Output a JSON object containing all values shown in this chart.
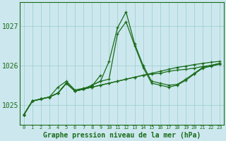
{
  "title": "Graphe pression niveau de la mer (hPa)",
  "background_color": "#cce8ee",
  "grid_color": "#99cccc",
  "line_color": "#1a6b1a",
  "x_labels": [
    "0",
    "1",
    "2",
    "3",
    "4",
    "5",
    "6",
    "7",
    "8",
    "9",
    "10",
    "11",
    "12",
    "13",
    "14",
    "15",
    "16",
    "17",
    "18",
    "19",
    "20",
    "21",
    "22",
    "23"
  ],
  "ylim": [
    1024.5,
    1027.6
  ],
  "yticks": [
    1025,
    1026,
    1027
  ],
  "series": {
    "line1": [
      1024.75,
      1025.1,
      1025.15,
      1025.2,
      1025.3,
      1025.55,
      1025.35,
      1025.4,
      1025.5,
      1025.6,
      1026.1,
      1026.95,
      1027.35,
      1026.55,
      1026.0,
      1025.6,
      1025.55,
      1025.5,
      1025.52,
      1025.65,
      1025.8,
      1025.95,
      1026.0,
      1026.05
    ],
    "line2": [
      1024.75,
      1025.1,
      1025.15,
      1025.2,
      1025.3,
      1025.55,
      1025.35,
      1025.4,
      1025.5,
      1025.6,
      1025.65,
      1026.8,
      1027.1,
      1026.5,
      1025.95,
      1025.55,
      1025.5,
      1025.45,
      1025.5,
      1025.62,
      1025.78,
      1025.93,
      1025.98,
      1026.03
    ],
    "line3_gradual": [
      1024.75,
      1025.1,
      1025.15,
      1025.2,
      1025.3,
      1025.55,
      1025.35,
      1025.4,
      1025.45,
      1025.5,
      1025.55,
      1025.6,
      1025.65,
      1025.7,
      1025.75,
      1025.8,
      1025.85,
      1025.9,
      1025.95,
      1025.98,
      1026.02,
      1026.05,
      1026.08,
      1026.1
    ],
    "line4_gradual": [
      1024.75,
      1025.1,
      1025.15,
      1025.2,
      1025.3,
      1025.55,
      1025.35,
      1025.4,
      1025.45,
      1025.5,
      1025.55,
      1025.6,
      1025.65,
      1025.7,
      1025.75,
      1025.78,
      1025.8,
      1025.85,
      1025.88,
      1025.9,
      1025.93,
      1025.97,
      1026.0,
      1026.05
    ],
    "line5_short": [
      1024.75,
      1025.1,
      1025.15,
      1025.2,
      1025.45,
      1025.6,
      1025.38,
      1025.42,
      1025.48,
      1025.75,
      null,
      null,
      null,
      null,
      null,
      null,
      null,
      null,
      null,
      null,
      null,
      null,
      null,
      null
    ],
    "line6_peak9": [
      null,
      null,
      null,
      null,
      null,
      null,
      null,
      null,
      null,
      1025.75,
      1025.85,
      null,
      null,
      null,
      null,
      null,
      null,
      null,
      null,
      null,
      null,
      null,
      null,
      null
    ]
  }
}
